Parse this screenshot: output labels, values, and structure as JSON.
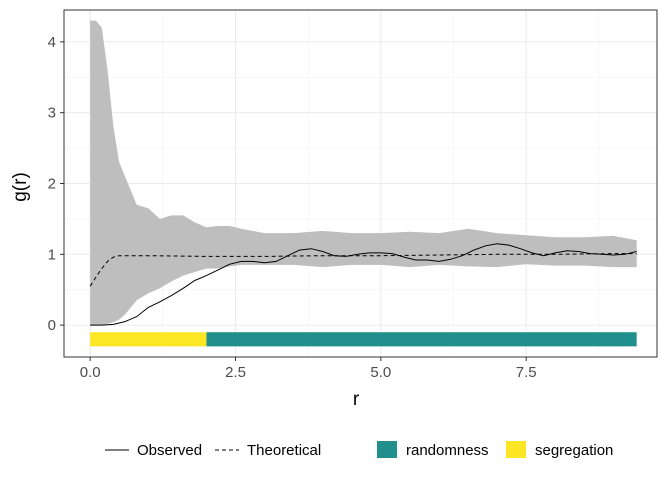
{
  "chart_data": {
    "type": "line",
    "xlabel": "r",
    "ylabel": "g(r)",
    "xlim": [
      -0.45,
      9.75
    ],
    "ylim": [
      -0.45,
      4.45
    ],
    "x_ticks": [
      0,
      2.5,
      5,
      7.5
    ],
    "x_tick_labels": [
      "0.0",
      "2.5",
      "5.0",
      "7.5"
    ],
    "y_ticks": [
      0,
      1,
      2,
      3,
      4
    ],
    "y_tick_labels": [
      "0",
      "1",
      "2",
      "3",
      "4"
    ],
    "grid": true,
    "legend_position": "bottom",
    "colors": {
      "envelope": "#bebebe",
      "observed": "#000000",
      "theoretical": "#000000",
      "randomness": "#21908c",
      "segregation": "#fde725"
    },
    "envelope": {
      "x": [
        0,
        0.1,
        0.2,
        0.3,
        0.4,
        0.5,
        0.6,
        0.7,
        0.8,
        1.0,
        1.2,
        1.4,
        1.6,
        1.8,
        2.0,
        2.2,
        2.4,
        2.6,
        3.0,
        3.5,
        4.0,
        4.5,
        5.0,
        5.5,
        6.0,
        6.5,
        7.0,
        7.5,
        8.0,
        8.5,
        9.0,
        9.4
      ],
      "upper": [
        4.3,
        4.3,
        4.2,
        3.6,
        2.8,
        2.3,
        2.1,
        1.9,
        1.7,
        1.65,
        1.5,
        1.55,
        1.55,
        1.45,
        1.38,
        1.4,
        1.4,
        1.36,
        1.3,
        1.3,
        1.33,
        1.3,
        1.3,
        1.32,
        1.3,
        1.36,
        1.3,
        1.27,
        1.24,
        1.24,
        1.26,
        1.2
      ],
      "lower": [
        0.0,
        0.0,
        0.0,
        0.02,
        0.04,
        0.08,
        0.15,
        0.25,
        0.35,
        0.45,
        0.52,
        0.62,
        0.7,
        0.75,
        0.8,
        0.8,
        0.83,
        0.85,
        0.85,
        0.85,
        0.82,
        0.85,
        0.85,
        0.82,
        0.85,
        0.83,
        0.82,
        0.86,
        0.84,
        0.84,
        0.82,
        0.82
      ]
    },
    "series": [
      {
        "name": "Observed",
        "style": "solid",
        "x": [
          0,
          0.2,
          0.4,
          0.5,
          0.6,
          0.8,
          1.0,
          1.2,
          1.4,
          1.6,
          1.8,
          2.0,
          2.2,
          2.4,
          2.6,
          2.8,
          3.0,
          3.2,
          3.4,
          3.6,
          3.8,
          4.0,
          4.2,
          4.4,
          4.6,
          4.8,
          5.0,
          5.2,
          5.4,
          5.6,
          5.8,
          6.0,
          6.2,
          6.4,
          6.6,
          6.8,
          7.0,
          7.2,
          7.4,
          7.6,
          7.8,
          8.0,
          8.2,
          8.4,
          8.6,
          8.8,
          9.0,
          9.2,
          9.4
        ],
        "y": [
          0.0,
          0.0,
          0.01,
          0.03,
          0.05,
          0.12,
          0.25,
          0.33,
          0.42,
          0.52,
          0.63,
          0.7,
          0.78,
          0.86,
          0.9,
          0.9,
          0.88,
          0.9,
          0.98,
          1.06,
          1.08,
          1.04,
          0.98,
          0.97,
          1.0,
          1.02,
          1.02,
          1.01,
          0.96,
          0.92,
          0.92,
          0.9,
          0.93,
          0.98,
          1.06,
          1.12,
          1.15,
          1.13,
          1.08,
          1.02,
          0.98,
          1.02,
          1.05,
          1.04,
          1.01,
          1.0,
          0.99,
          1.0,
          1.04
        ]
      },
      {
        "name": "Theoretical",
        "style": "dashed",
        "x": [
          0,
          0.1,
          0.2,
          0.3,
          0.4,
          0.5,
          0.7,
          1.0,
          2.0,
          3.0,
          4.0,
          5.0,
          6.0,
          7.0,
          8.0,
          9.0,
          9.4
        ],
        "y": [
          0.55,
          0.68,
          0.8,
          0.9,
          0.96,
          0.98,
          0.98,
          0.98,
          0.97,
          0.97,
          0.98,
          0.98,
          0.99,
          1.0,
          1.0,
          1.01,
          1.01
        ]
      }
    ],
    "bands": [
      {
        "label": "segregation",
        "x_start": 0,
        "x_end": 2.0
      },
      {
        "label": "randomness",
        "x_start": 2.0,
        "x_end": 9.4
      }
    ],
    "band_y": [
      -0.3,
      -0.1
    ],
    "legend": {
      "lines": [
        "Observed",
        "Theoretical"
      ],
      "fills": [
        "randomness",
        "segregation"
      ]
    }
  }
}
